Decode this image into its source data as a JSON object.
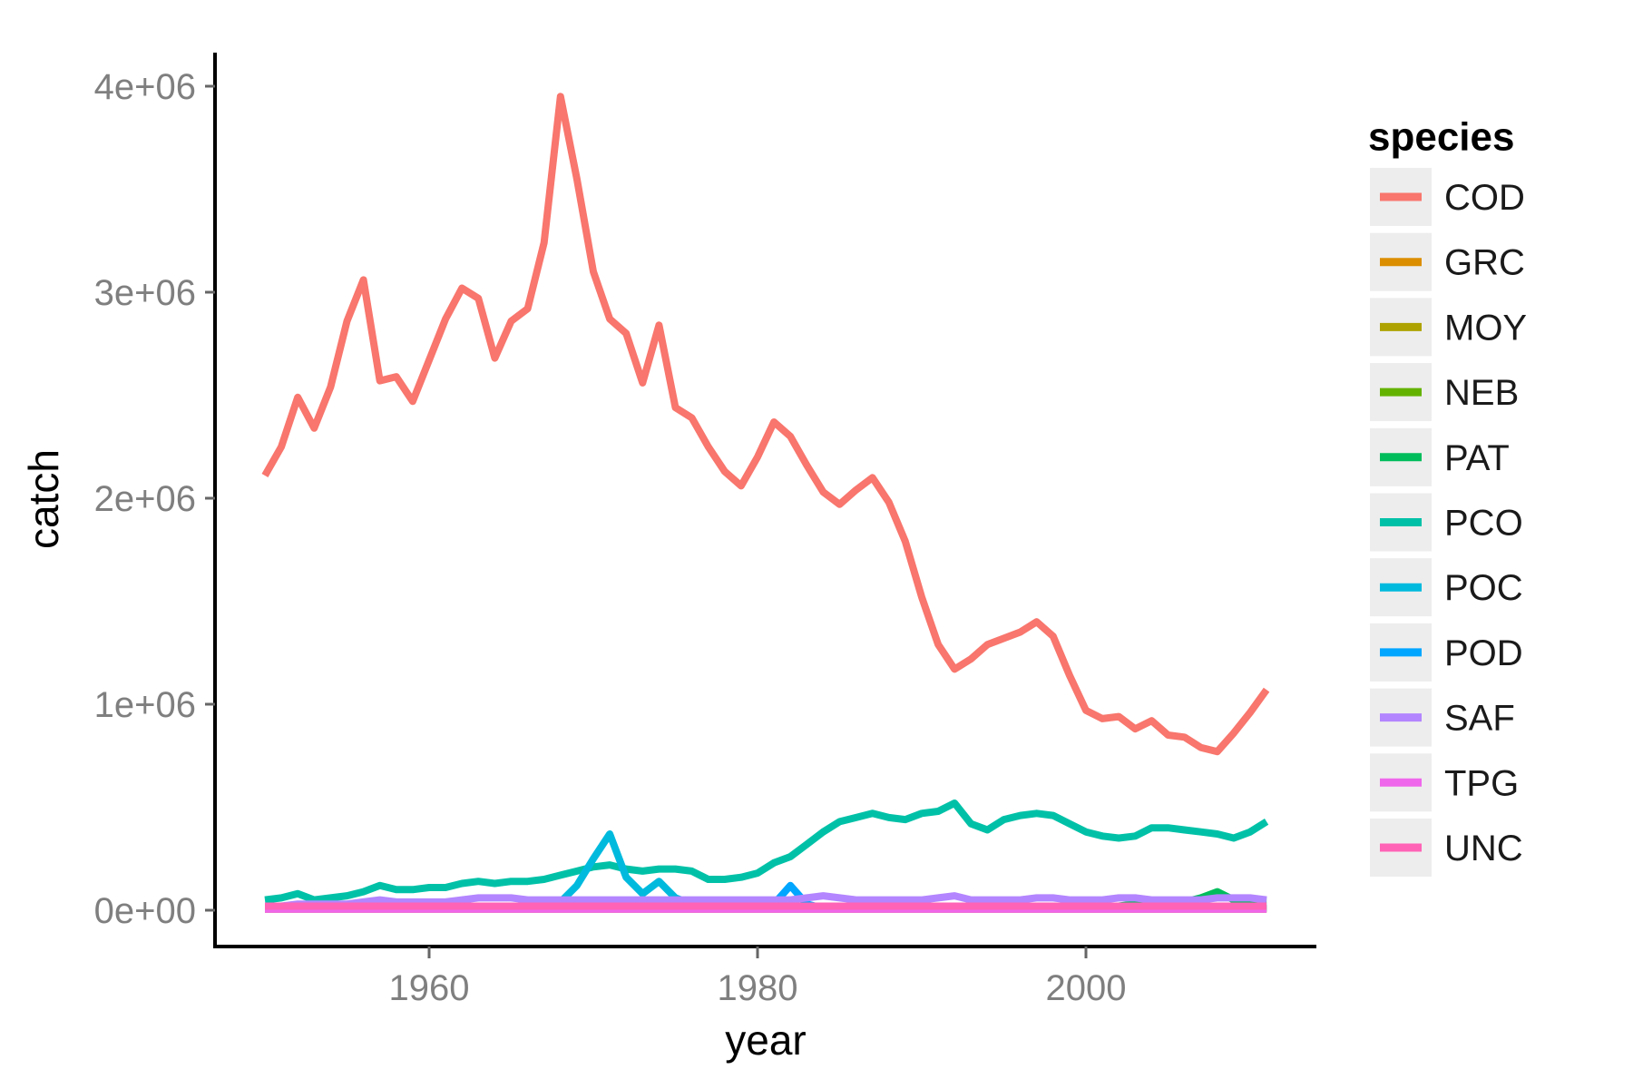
{
  "chart_data": {
    "type": "line",
    "title": "",
    "xlabel": "year",
    "ylabel": "catch",
    "legend_title": "species",
    "legend_position": "right",
    "grid": false,
    "background": "#ffffff",
    "axis_color": "#000000",
    "tick_label_color": "#7f7f7f",
    "legend_key_fill": "#ededed",
    "xlim": [
      1947,
      2014
    ],
    "ylim": [
      0,
      4000000
    ],
    "value_unit": 1000000,
    "x_ticks": [
      {
        "value": 1960,
        "label": "1960"
      },
      {
        "value": 1980,
        "label": "1980"
      },
      {
        "value": 2000,
        "label": "2000"
      }
    ],
    "y_ticks": [
      {
        "value": 0,
        "label": "0e+00"
      },
      {
        "value": 1000000,
        "label": "1e+06"
      },
      {
        "value": 2000000,
        "label": "2e+06"
      },
      {
        "value": 3000000,
        "label": "3e+06"
      },
      {
        "value": 4000000,
        "label": "4e+06"
      }
    ],
    "x": [
      1950,
      1951,
      1952,
      1953,
      1954,
      1955,
      1956,
      1957,
      1958,
      1959,
      1960,
      1961,
      1962,
      1963,
      1964,
      1965,
      1966,
      1967,
      1968,
      1969,
      1970,
      1971,
      1972,
      1973,
      1974,
      1975,
      1976,
      1977,
      1978,
      1979,
      1980,
      1981,
      1982,
      1983,
      1984,
      1985,
      1986,
      1987,
      1988,
      1989,
      1990,
      1991,
      1992,
      1993,
      1994,
      1995,
      1996,
      1997,
      1998,
      1999,
      2000,
      2001,
      2002,
      2003,
      2004,
      2005,
      2006,
      2007,
      2008,
      2009,
      2010,
      2011
    ],
    "series": [
      {
        "name": "COD",
        "color": "#F8766D",
        "values_millions": [
          2.11,
          2.25,
          2.49,
          2.34,
          2.54,
          2.86,
          3.06,
          2.57,
          2.59,
          2.47,
          2.67,
          2.87,
          3.02,
          2.97,
          2.68,
          2.86,
          2.92,
          3.24,
          3.95,
          3.55,
          3.1,
          2.87,
          2.8,
          2.56,
          2.84,
          2.44,
          2.39,
          2.25,
          2.13,
          2.06,
          2.2,
          2.37,
          2.3,
          2.16,
          2.03,
          1.97,
          2.04,
          2.1,
          1.98,
          1.79,
          1.52,
          1.29,
          1.17,
          1.22,
          1.29,
          1.32,
          1.35,
          1.4,
          1.33,
          1.14,
          0.97,
          0.93,
          0.94,
          0.88,
          0.92,
          0.85,
          0.84,
          0.79,
          0.77,
          0.86,
          0.96,
          1.07
        ]
      },
      {
        "name": "GRC",
        "color": "#DB8E00",
        "values_millions_constant": 0.005
      },
      {
        "name": "MOY",
        "color": "#AEA200",
        "values_millions_constant": 0.008
      },
      {
        "name": "NEB",
        "color": "#64B200",
        "values_millions_constant": 0.012
      },
      {
        "name": "PAT",
        "color": "#00BD5C",
        "values_millions": [
          0.01,
          0.01,
          0.01,
          0.01,
          0.01,
          0.01,
          0.01,
          0.01,
          0.01,
          0.01,
          0.01,
          0.01,
          0.01,
          0.01,
          0.01,
          0.01,
          0.01,
          0.01,
          0.01,
          0.01,
          0.01,
          0.01,
          0.01,
          0.01,
          0.01,
          0.01,
          0.01,
          0.01,
          0.01,
          0.01,
          0.01,
          0.01,
          0.01,
          0.01,
          0.01,
          0.01,
          0.01,
          0.01,
          0.01,
          0.01,
          0.01,
          0.01,
          0.01,
          0.01,
          0.01,
          0.01,
          0.01,
          0.01,
          0.01,
          0.01,
          0.02,
          0.02,
          0.02,
          0.03,
          0.03,
          0.03,
          0.04,
          0.06,
          0.09,
          0.05,
          0.05,
          0.05
        ]
      },
      {
        "name": "PCO",
        "color": "#00C1A7",
        "values_millions": [
          0.05,
          0.06,
          0.08,
          0.05,
          0.06,
          0.07,
          0.09,
          0.12,
          0.1,
          0.1,
          0.11,
          0.11,
          0.13,
          0.14,
          0.13,
          0.14,
          0.14,
          0.15,
          0.17,
          0.19,
          0.21,
          0.22,
          0.2,
          0.19,
          0.2,
          0.2,
          0.19,
          0.15,
          0.15,
          0.16,
          0.18,
          0.23,
          0.26,
          0.32,
          0.38,
          0.43,
          0.45,
          0.47,
          0.45,
          0.44,
          0.47,
          0.48,
          0.52,
          0.42,
          0.39,
          0.44,
          0.46,
          0.47,
          0.46,
          0.42,
          0.38,
          0.36,
          0.35,
          0.36,
          0.4,
          0.4,
          0.39,
          0.38,
          0.37,
          0.35,
          0.38,
          0.43
        ]
      },
      {
        "name": "POC",
        "color": "#00BADE",
        "values_millions": [
          0.01,
          0.01,
          0.01,
          0.01,
          0.01,
          0.01,
          0.01,
          0.01,
          0.01,
          0.01,
          0.01,
          0.01,
          0.01,
          0.01,
          0.01,
          0.01,
          0.01,
          0.01,
          0.04,
          0.12,
          0.25,
          0.37,
          0.16,
          0.08,
          0.14,
          0.06,
          0.03,
          0.02,
          0.02,
          0.02,
          0.02,
          0.02,
          0.02,
          0.02,
          0.02,
          0.02,
          0.02,
          0.02,
          0.02,
          0.02,
          0.02,
          0.02,
          0.02,
          0.02,
          0.02,
          0.02,
          0.02,
          0.02,
          0.02,
          0.02,
          0.02,
          0.02,
          0.02,
          0.02,
          0.02,
          0.02,
          0.02,
          0.02,
          0.02,
          0.02,
          0.02,
          0.02
        ]
      },
      {
        "name": "POD",
        "color": "#00A6FF",
        "values_millions": [
          0.01,
          0.01,
          0.01,
          0.01,
          0.01,
          0.01,
          0.01,
          0.01,
          0.01,
          0.01,
          0.01,
          0.01,
          0.01,
          0.01,
          0.01,
          0.01,
          0.01,
          0.01,
          0.01,
          0.01,
          0.01,
          0.01,
          0.01,
          0.01,
          0.01,
          0.01,
          0.01,
          0.01,
          0.01,
          0.01,
          0.01,
          0.03,
          0.12,
          0.03,
          0.01,
          0.01,
          0.01,
          0.01,
          0.01,
          0.01,
          0.01,
          0.01,
          0.01,
          0.01,
          0.01,
          0.01,
          0.01,
          0.01,
          0.01,
          0.01,
          0.01,
          0.01,
          0.01,
          0.01,
          0.01,
          0.01,
          0.01,
          0.01,
          0.01,
          0.01,
          0.01,
          0.01
        ]
      },
      {
        "name": "SAF",
        "color": "#B385FF",
        "values_millions": [
          0.02,
          0.02,
          0.03,
          0.03,
          0.03,
          0.03,
          0.04,
          0.05,
          0.04,
          0.04,
          0.04,
          0.04,
          0.05,
          0.06,
          0.06,
          0.06,
          0.05,
          0.05,
          0.05,
          0.05,
          0.05,
          0.05,
          0.05,
          0.05,
          0.05,
          0.05,
          0.05,
          0.05,
          0.05,
          0.05,
          0.05,
          0.05,
          0.05,
          0.06,
          0.07,
          0.06,
          0.05,
          0.05,
          0.05,
          0.05,
          0.05,
          0.06,
          0.07,
          0.05,
          0.05,
          0.05,
          0.05,
          0.06,
          0.06,
          0.05,
          0.05,
          0.05,
          0.06,
          0.06,
          0.05,
          0.05,
          0.05,
          0.05,
          0.06,
          0.06,
          0.06,
          0.05
        ]
      },
      {
        "name": "TPG",
        "color": "#EF67EB",
        "values_millions_constant": 0.005
      },
      {
        "name": "UNC",
        "color": "#FF63B6",
        "values_millions_constant": 0.02
      }
    ]
  }
}
